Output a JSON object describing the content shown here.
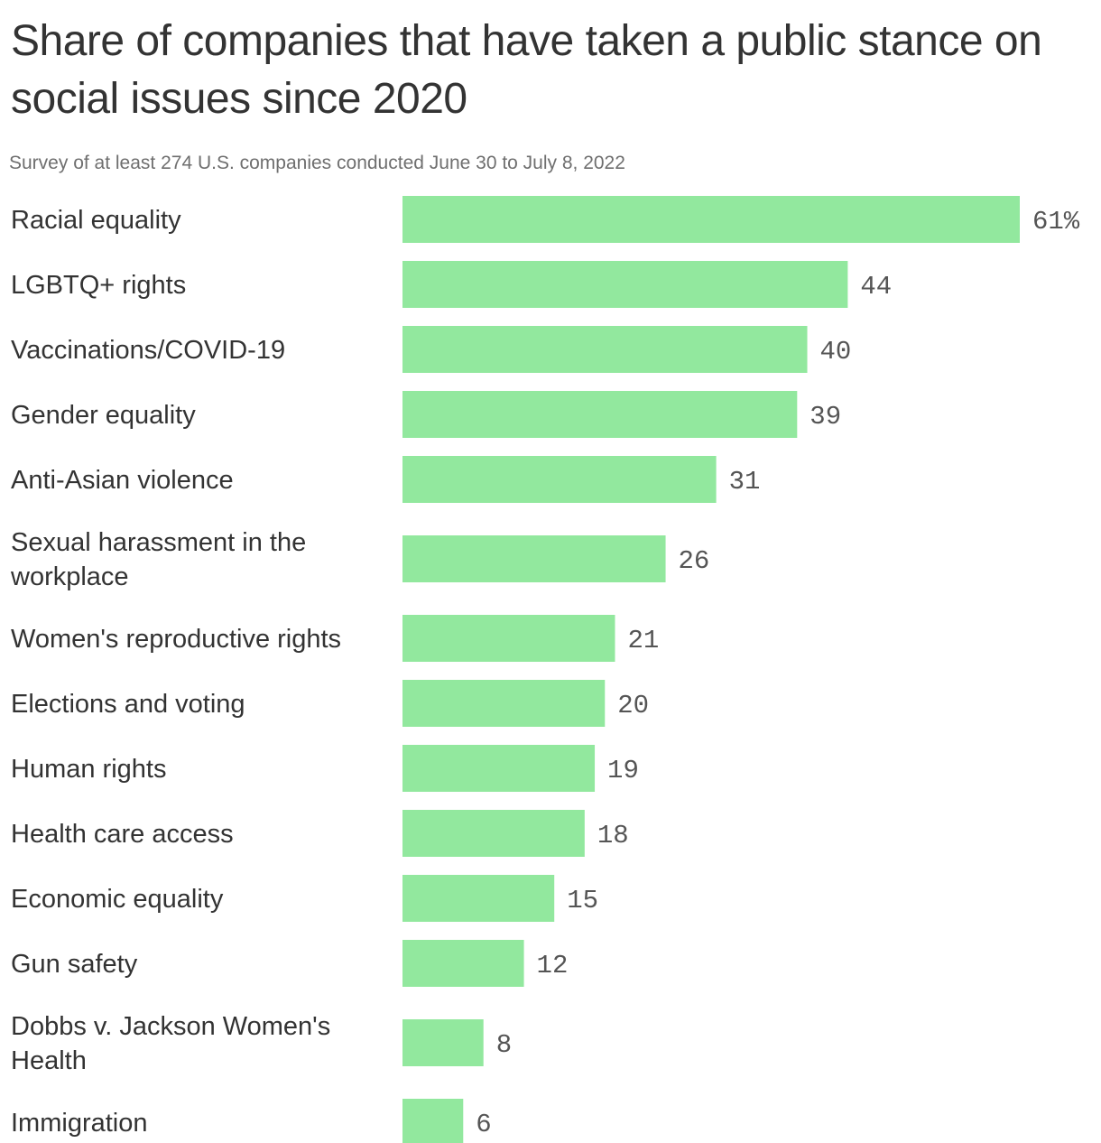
{
  "title": "Share of companies that have taken a public stance on social issues since 2020",
  "subtitle": "Survey of at least 274 U.S. companies conducted June 30 to July 8, 2022",
  "bar_color": "#92e89e",
  "chart_data": {
    "type": "bar",
    "orientation": "horizontal",
    "unit": "%",
    "categories": [
      "Racial equality",
      "LGBTQ+ rights",
      "Vaccinations/COVID-19",
      "Gender equality",
      "Anti-Asian violence",
      "Sexual harassment in the workplace",
      "Women's reproductive rights",
      "Elections and voting",
      "Human rights",
      "Health care access",
      "Economic equality",
      "Gun safety",
      "Dobbs v. Jackson Women's Health",
      "Immigration"
    ],
    "category_lines": [
      [
        "Racial equality"
      ],
      [
        "LGBTQ+ rights"
      ],
      [
        "Vaccinations/COVID-19"
      ],
      [
        "Gender equality"
      ],
      [
        "Anti-Asian violence"
      ],
      [
        "Sexual harassment in the",
        "workplace"
      ],
      [
        "Women's reproductive rights"
      ],
      [
        "Elections and voting"
      ],
      [
        "Human rights"
      ],
      [
        "Health care access"
      ],
      [
        "Economic equality"
      ],
      [
        "Gun safety"
      ],
      [
        "Dobbs v. Jackson Women's",
        "Health"
      ],
      [
        "Immigration"
      ]
    ],
    "values": [
      61,
      44,
      40,
      39,
      31,
      26,
      21,
      20,
      19,
      18,
      15,
      12,
      8,
      6
    ],
    "value_labels": [
      "61%",
      "44",
      "40",
      "39",
      "31",
      "26",
      "21",
      "20",
      "19",
      "18",
      "15",
      "12",
      "8",
      "6"
    ],
    "xlim": [
      0,
      61
    ],
    "grid": false,
    "legend": "none"
  }
}
